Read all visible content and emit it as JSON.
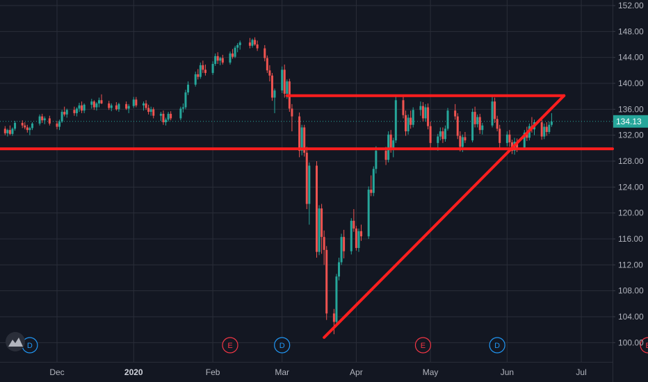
{
  "chart_data": {
    "type": "candlestick",
    "title": "",
    "xlabel": "",
    "ylabel": "",
    "ylim": [
      96.5,
      153.0
    ],
    "y_ticks": [
      "152.00",
      "148.00",
      "144.00",
      "140.00",
      "136.00",
      "132.00",
      "128.00",
      "124.00",
      "120.00",
      "116.00",
      "112.00",
      "108.00",
      "104.00",
      "100.00"
    ],
    "x_ticks": [
      {
        "label": "Dec",
        "date": "2019-12-02"
      },
      {
        "label": "2020",
        "date": "2020-01-02"
      },
      {
        "label": "Feb",
        "date": "2020-02-03"
      },
      {
        "label": "Mar",
        "date": "2020-03-02"
      },
      {
        "label": "Apr",
        "date": "2020-04-01"
      },
      {
        "label": "May",
        "date": "2020-05-01"
      },
      {
        "label": "Jun",
        "date": "2020-06-01"
      },
      {
        "label": "Jul",
        "date": "2020-07-01"
      }
    ],
    "last_price": "134.13",
    "colors": {
      "background": "#131722",
      "grid": "#2a2e39",
      "up": "#26a69a",
      "down": "#ef5350",
      "drawing": "#ff1e1e",
      "price_label": "#26a69a",
      "dividend": "#2196f3",
      "earnings": "#f23645"
    },
    "events": [
      {
        "type": "D",
        "date": "2019-11-21"
      },
      {
        "type": "E",
        "date": "2020-02-10"
      },
      {
        "type": "D",
        "date": "2020-03-02"
      },
      {
        "type": "E",
        "date": "2020-04-28"
      },
      {
        "type": "D",
        "date": "2020-05-28"
      },
      {
        "type": "E",
        "date": "2020-07-28"
      }
    ],
    "trendlines": [
      {
        "from": {
          "date": "2020-03-04",
          "price": 138.1
        },
        "to": {
          "date": "2020-06-24",
          "price": 138.1
        }
      },
      {
        "from": {
          "date": "2019-11-07",
          "price": 129.9
        },
        "to": {
          "date": "2020-07-31",
          "price": 129.9
        }
      },
      {
        "from": {
          "date": "2020-03-19",
          "price": 100.8
        },
        "to": {
          "date": "2020-06-24",
          "price": 138.1
        }
      }
    ],
    "ohlc": [
      [
        "2019-11-08",
        133.3,
        133.9,
        132.6,
        133.0
      ],
      [
        "2019-11-11",
        133.0,
        133.4,
        132.0,
        132.3
      ],
      [
        "2019-11-12",
        132.3,
        133.0,
        131.8,
        132.8
      ],
      [
        "2019-11-13",
        132.8,
        133.5,
        132.0,
        132.2
      ],
      [
        "2019-11-14",
        132.2,
        133.2,
        131.9,
        133.0
      ],
      [
        "2019-11-15",
        133.0,
        134.2,
        132.7,
        133.9
      ],
      [
        "2019-11-18",
        133.9,
        134.3,
        133.1,
        133.5
      ],
      [
        "2019-11-19",
        133.5,
        134.0,
        132.9,
        133.2
      ],
      [
        "2019-11-20",
        133.2,
        133.6,
        132.4,
        132.8
      ],
      [
        "2019-11-21",
        132.8,
        133.3,
        132.0,
        133.1
      ],
      [
        "2019-11-22",
        133.1,
        134.0,
        132.8,
        133.8
      ],
      [
        "2019-11-25",
        133.8,
        135.2,
        133.5,
        134.9
      ],
      [
        "2019-11-26",
        134.9,
        135.3,
        133.9,
        134.3
      ],
      [
        "2019-11-27",
        134.3,
        134.9,
        133.7,
        134.6
      ],
      [
        "2019-11-29",
        134.6,
        135.0,
        133.5,
        133.8
      ],
      [
        "2019-12-02",
        133.8,
        134.2,
        132.9,
        133.3
      ],
      [
        "2019-12-03",
        133.3,
        134.4,
        132.8,
        134.1
      ],
      [
        "2019-12-04",
        134.1,
        135.9,
        133.9,
        135.6
      ],
      [
        "2019-12-05",
        135.6,
        136.4,
        134.9,
        135.2
      ],
      [
        "2019-12-06",
        135.2,
        136.1,
        134.7,
        135.9
      ],
      [
        "2019-12-09",
        135.9,
        136.4,
        135.0,
        135.4
      ],
      [
        "2019-12-10",
        135.4,
        136.3,
        134.9,
        136.1
      ],
      [
        "2019-12-11",
        136.1,
        137.0,
        135.6,
        136.6
      ],
      [
        "2019-12-12",
        136.6,
        137.2,
        135.4,
        135.8
      ],
      [
        "2019-12-13",
        135.8,
        136.9,
        135.4,
        136.7
      ],
      [
        "2019-12-16",
        136.7,
        137.6,
        136.1,
        137.2
      ],
      [
        "2019-12-17",
        137.2,
        137.4,
        135.9,
        136.3
      ],
      [
        "2019-12-18",
        136.3,
        137.1,
        135.8,
        136.9
      ],
      [
        "2019-12-19",
        136.9,
        137.8,
        136.3,
        137.4
      ],
      [
        "2019-12-20",
        137.4,
        138.3,
        136.8,
        136.9
      ],
      [
        "2019-12-23",
        136.9,
        137.3,
        135.9,
        136.2
      ],
      [
        "2019-12-24",
        136.2,
        136.9,
        135.7,
        136.6
      ],
      [
        "2019-12-26",
        136.6,
        137.1,
        135.8,
        136.0
      ],
      [
        "2019-12-27",
        136.0,
        137.0,
        135.6,
        136.8
      ],
      [
        "2019-12-30",
        136.8,
        137.2,
        135.9,
        136.1
      ],
      [
        "2019-12-31",
        136.1,
        136.8,
        135.4,
        136.5
      ],
      [
        "2020-01-02",
        136.5,
        137.9,
        136.2,
        137.5
      ],
      [
        "2020-01-03",
        137.5,
        137.9,
        136.3,
        136.6
      ],
      [
        "2020-01-06",
        136.6,
        137.2,
        135.8,
        136.9
      ],
      [
        "2020-01-07",
        136.9,
        137.4,
        135.9,
        136.2
      ],
      [
        "2020-01-08",
        136.2,
        136.7,
        135.2,
        135.6
      ],
      [
        "2020-01-09",
        135.6,
        136.4,
        135.0,
        136.0
      ],
      [
        "2020-01-10",
        136.0,
        136.3,
        134.6,
        135.0
      ],
      [
        "2020-01-13",
        135.0,
        135.6,
        134.2,
        135.3
      ],
      [
        "2020-01-14",
        135.3,
        135.8,
        133.6,
        134.0
      ],
      [
        "2020-01-15",
        134.0,
        134.7,
        133.5,
        134.4
      ],
      [
        "2020-01-16",
        134.4,
        135.6,
        134.1,
        135.3
      ],
      [
        "2020-01-17",
        135.3,
        135.7,
        134.3,
        134.6
      ],
      [
        "2020-01-21",
        134.6,
        136.4,
        134.3,
        136.1
      ],
      [
        "2020-01-22",
        136.1,
        136.9,
        135.5,
        136.3
      ],
      [
        "2020-01-23",
        136.3,
        139.0,
        136.0,
        138.6
      ],
      [
        "2020-01-24",
        138.6,
        140.3,
        138.2,
        139.8
      ],
      [
        "2020-01-27",
        139.8,
        141.8,
        139.5,
        141.4
      ],
      [
        "2020-01-28",
        141.4,
        142.2,
        140.6,
        141.0
      ],
      [
        "2020-01-29",
        141.0,
        143.2,
        140.7,
        142.8
      ],
      [
        "2020-01-30",
        142.8,
        143.5,
        141.6,
        142.1
      ],
      [
        "2020-01-31",
        142.1,
        142.9,
        141.2,
        141.6
      ],
      [
        "2020-02-03",
        141.6,
        143.4,
        141.3,
        143.0
      ],
      [
        "2020-02-04",
        143.0,
        144.6,
        142.7,
        144.2
      ],
      [
        "2020-02-05",
        144.2,
        144.8,
        143.0,
        143.5
      ],
      [
        "2020-02-06",
        143.5,
        144.1,
        142.8,
        143.9
      ],
      [
        "2020-02-07",
        143.9,
        144.4,
        142.9,
        143.2
      ],
      [
        "2020-02-10",
        143.2,
        144.9,
        142.9,
        144.6
      ],
      [
        "2020-02-11",
        144.6,
        145.3,
        143.8,
        144.1
      ],
      [
        "2020-02-12",
        144.1,
        145.8,
        143.9,
        145.5
      ],
      [
        "2020-02-13",
        145.5,
        146.2,
        144.8,
        145.9
      ],
      [
        "2020-02-14",
        145.9,
        146.6,
        145.2,
        146.3
      ],
      [
        "2020-02-18",
        146.3,
        147.0,
        145.4,
        145.8
      ],
      [
        "2020-02-19",
        145.8,
        146.9,
        145.5,
        146.7
      ],
      [
        "2020-02-20",
        146.7,
        147.1,
        145.8,
        146.0
      ],
      [
        "2020-02-21",
        146.0,
        146.6,
        145.0,
        145.4
      ],
      [
        "2020-02-24",
        145.4,
        145.9,
        143.4,
        143.9
      ],
      [
        "2020-02-25",
        143.9,
        144.3,
        141.6,
        142.0
      ],
      [
        "2020-02-26",
        142.0,
        142.8,
        140.3,
        141.2
      ],
      [
        "2020-02-27",
        141.2,
        141.6,
        137.3,
        137.8
      ],
      [
        "2020-02-28",
        137.8,
        139.2,
        135.4,
        138.9
      ],
      [
        "2020-03-02",
        138.9,
        142.6,
        138.5,
        142.1
      ],
      [
        "2020-03-03",
        142.1,
        142.9,
        137.8,
        138.4
      ],
      [
        "2020-03-04",
        138.4,
        140.6,
        137.6,
        140.3
      ],
      [
        "2020-03-05",
        140.3,
        140.7,
        135.6,
        136.1
      ],
      [
        "2020-03-06",
        136.1,
        136.8,
        132.6,
        134.9
      ],
      [
        "2020-03-09",
        134.9,
        135.5,
        128.6,
        129.6
      ],
      [
        "2020-03-10",
        129.6,
        133.6,
        128.9,
        133.2
      ],
      [
        "2020-03-11",
        133.2,
        133.6,
        128.7,
        129.3
      ],
      [
        "2020-03-12",
        129.3,
        130.2,
        120.6,
        121.4
      ],
      [
        "2020-03-13",
        121.4,
        127.8,
        118.2,
        127.3
      ],
      [
        "2020-03-16",
        127.3,
        128.0,
        113.1,
        114.0
      ],
      [
        "2020-03-17",
        114.0,
        121.2,
        113.5,
        120.7
      ],
      [
        "2020-03-18",
        120.7,
        121.4,
        113.7,
        116.3
      ],
      [
        "2020-03-19",
        116.3,
        117.3,
        112.0,
        114.3
      ],
      [
        "2020-03-20",
        114.3,
        114.9,
        103.5,
        104.5
      ],
      [
        "2020-03-23",
        104.5,
        105.2,
        101.3,
        103.2
      ],
      [
        "2020-03-24",
        103.2,
        110.6,
        102.9,
        110.2
      ],
      [
        "2020-03-25",
        110.2,
        113.1,
        109.6,
        112.4
      ],
      [
        "2020-03-26",
        112.4,
        116.8,
        112.0,
        116.3
      ],
      [
        "2020-03-27",
        116.3,
        117.4,
        113.0,
        114.1
      ],
      [
        "2020-03-30",
        114.1,
        119.2,
        113.6,
        118.8
      ],
      [
        "2020-03-31",
        118.8,
        120.6,
        117.1,
        117.6
      ],
      [
        "2020-04-01",
        117.6,
        118.0,
        114.2,
        114.6
      ],
      [
        "2020-04-02",
        114.6,
        117.6,
        114.0,
        117.2
      ],
      [
        "2020-04-03",
        117.2,
        118.2,
        115.7,
        116.4
      ],
      [
        "2020-04-06",
        116.4,
        124.1,
        116.0,
        123.6
      ],
      [
        "2020-04-07",
        123.6,
        125.8,
        122.6,
        123.1
      ],
      [
        "2020-04-08",
        123.1,
        127.2,
        122.6,
        126.8
      ],
      [
        "2020-04-09",
        126.8,
        130.3,
        126.1,
        129.6
      ],
      [
        "2020-04-13",
        129.6,
        130.2,
        127.4,
        128.2
      ],
      [
        "2020-04-14",
        128.2,
        132.6,
        127.8,
        132.1
      ],
      [
        "2020-04-15",
        132.1,
        132.8,
        129.3,
        130.0
      ],
      [
        "2020-04-16",
        130.0,
        131.6,
        128.6,
        131.2
      ],
      [
        "2020-04-17",
        131.2,
        137.9,
        130.8,
        137.4
      ],
      [
        "2020-04-20",
        137.4,
        137.9,
        134.6,
        135.1
      ],
      [
        "2020-04-21",
        135.1,
        135.8,
        131.9,
        132.6
      ],
      [
        "2020-04-22",
        132.6,
        135.2,
        132.1,
        134.7
      ],
      [
        "2020-04-23",
        134.7,
        135.8,
        133.0,
        133.6
      ],
      [
        "2020-04-24",
        133.6,
        136.3,
        133.2,
        135.9
      ],
      [
        "2020-04-27",
        135.9,
        137.2,
        135.0,
        136.5
      ],
      [
        "2020-04-28",
        136.5,
        137.1,
        134.1,
        134.6
      ],
      [
        "2020-04-29",
        134.6,
        136.8,
        134.1,
        136.3
      ],
      [
        "2020-04-30",
        136.3,
        136.9,
        132.9,
        133.4
      ],
      [
        "2020-05-01",
        133.4,
        134.1,
        130.1,
        130.8
      ],
      [
        "2020-05-04",
        130.8,
        132.2,
        129.6,
        131.8
      ],
      [
        "2020-05-05",
        131.8,
        133.2,
        131.2,
        132.6
      ],
      [
        "2020-05-06",
        132.6,
        133.2,
        130.8,
        131.4
      ],
      [
        "2020-05-07",
        131.4,
        133.5,
        131.0,
        133.0
      ],
      [
        "2020-05-08",
        133.0,
        136.2,
        132.7,
        135.8
      ],
      [
        "2020-05-11",
        135.8,
        136.8,
        134.4,
        134.9
      ],
      [
        "2020-05-12",
        134.9,
        135.4,
        131.4,
        131.9
      ],
      [
        "2020-05-13",
        131.9,
        132.6,
        129.5,
        130.2
      ],
      [
        "2020-05-14",
        130.2,
        132.1,
        129.4,
        131.7
      ],
      [
        "2020-05-15",
        131.7,
        132.5,
        130.8,
        131.2
      ],
      [
        "2020-05-18",
        131.2,
        136.1,
        130.9,
        135.6
      ],
      [
        "2020-05-19",
        135.6,
        136.4,
        133.2,
        133.7
      ],
      [
        "2020-05-20",
        133.7,
        135.2,
        133.2,
        134.8
      ],
      [
        "2020-05-21",
        134.8,
        135.3,
        132.2,
        132.8
      ],
      [
        "2020-05-22",
        132.8,
        133.9,
        132.1,
        133.5
      ],
      [
        "2020-05-26",
        133.5,
        137.9,
        133.2,
        137.2
      ],
      [
        "2020-05-27",
        137.2,
        137.8,
        133.9,
        134.5
      ],
      [
        "2020-05-28",
        134.5,
        135.0,
        132.6,
        133.0
      ],
      [
        "2020-05-29",
        133.0,
        133.6,
        130.1,
        130.8
      ],
      [
        "2020-06-01",
        130.8,
        132.6,
        130.3,
        132.1
      ],
      [
        "2020-06-02",
        132.1,
        132.8,
        130.2,
        130.9
      ],
      [
        "2020-06-03",
        130.9,
        131.3,
        129.1,
        129.6
      ],
      [
        "2020-06-04",
        129.6,
        131.6,
        129.0,
        131.0
      ],
      [
        "2020-06-05",
        131.0,
        131.5,
        129.4,
        130.1
      ],
      [
        "2020-06-08",
        130.1,
        132.8,
        129.8,
        132.4
      ],
      [
        "2020-06-09",
        132.4,
        133.3,
        131.1,
        131.6
      ],
      [
        "2020-06-10",
        131.6,
        133.8,
        131.2,
        133.4
      ],
      [
        "2020-06-11",
        133.4,
        134.8,
        132.4,
        132.9
      ],
      [
        "2020-06-12",
        132.9,
        134.4,
        132.0,
        134.0
      ],
      [
        "2020-06-15",
        134.0,
        134.5,
        131.3,
        131.8
      ],
      [
        "2020-06-16",
        131.8,
        133.8,
        131.4,
        133.3
      ],
      [
        "2020-06-17",
        133.3,
        134.0,
        131.9,
        132.5
      ],
      [
        "2020-06-18",
        132.5,
        134.1,
        132.2,
        133.6
      ],
      [
        "2020-06-19",
        133.6,
        135.4,
        133.3,
        134.1
      ]
    ]
  }
}
